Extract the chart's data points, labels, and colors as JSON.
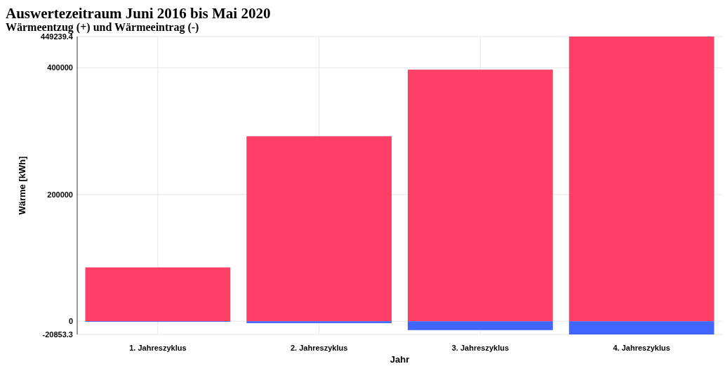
{
  "chart_data": {
    "type": "bar",
    "title": "Auswertezeitraum Juni 2016 bis Mai 2020",
    "subtitle": "Wärmeentzug (+) und Wärmeeintrag (-)",
    "xlabel": "Jahr",
    "ylabel": "Wärme [kWh]",
    "categories": [
      "1. Jahreszyklus",
      "2. Jahreszyklus",
      "3. Jahreszyklus",
      "4. Jahreszyklus"
    ],
    "series": [
      {
        "color": "#ff4066",
        "values": [
          85000,
          292000,
          397000,
          449239.4
        ]
      },
      {
        "color": "#4166ff",
        "values": [
          -1000,
          -3000,
          -14000,
          -20853.3
        ]
      }
    ],
    "stacked": true,
    "ylim": [
      -20853.3,
      449239.4
    ],
    "yticks": [
      -20853.3,
      0,
      200000,
      400000,
      449239.4
    ],
    "grid": true
  }
}
